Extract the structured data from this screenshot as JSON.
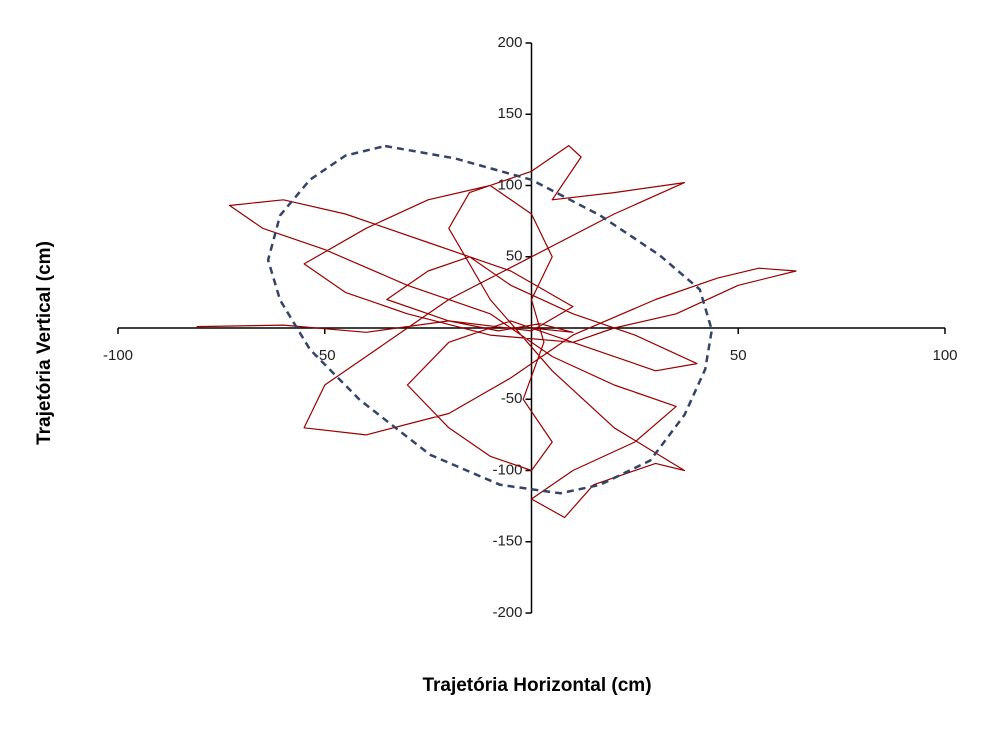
{
  "chart_data": {
    "type": "line",
    "x_label": "Trajetória Horizontal (cm)",
    "y_label": "Trajetória Vertical (cm)",
    "xlim": [
      -100,
      100
    ],
    "ylim": [
      -200,
      200
    ],
    "xticks": [
      -100,
      -50,
      50,
      100
    ],
    "yticks": [
      -200,
      -150,
      -100,
      -50,
      50,
      100,
      150,
      200
    ],
    "trajectory": {
      "color": "#990000",
      "x": [
        -81,
        -60,
        -40,
        -20,
        0,
        10,
        -5,
        -25,
        -45,
        -60,
        -73,
        -65,
        -50,
        -30,
        -10,
        5,
        20,
        35,
        25,
        10,
        0,
        8,
        15,
        30,
        37,
        20,
        5,
        -10,
        -20,
        -15,
        0,
        9,
        12,
        5,
        20,
        37,
        20,
        0,
        -20,
        -35,
        -50,
        -55,
        -40,
        -20,
        -5,
        10,
        30,
        45,
        55,
        64,
        50,
        35,
        20,
        10,
        -10,
        -30,
        -45,
        -55,
        -40,
        -25,
        -10,
        0,
        5,
        0,
        3,
        -2,
        5,
        0,
        -10,
        -20,
        -30,
        -20,
        -5,
        15,
        30,
        40,
        25,
        10,
        -5,
        -15,
        -25,
        -35,
        -20,
        -8,
        2,
        10,
        0
      ],
      "y": [
        1,
        2,
        -3,
        5,
        -2,
        15,
        40,
        60,
        80,
        90,
        86,
        70,
        55,
        30,
        10,
        -20,
        -40,
        -55,
        -80,
        -100,
        -120,
        -133,
        -110,
        -95,
        -100,
        -70,
        -30,
        20,
        70,
        95,
        110,
        128,
        120,
        90,
        95,
        102,
        80,
        50,
        20,
        -10,
        -40,
        -70,
        -75,
        -60,
        -35,
        -5,
        20,
        35,
        42,
        40,
        30,
        10,
        0,
        -10,
        -5,
        10,
        25,
        45,
        70,
        90,
        100,
        80,
        50,
        20,
        -10,
        -50,
        -80,
        -100,
        -90,
        -70,
        -40,
        -10,
        5,
        -15,
        -30,
        -25,
        -5,
        10,
        30,
        50,
        40,
        20,
        5,
        -2,
        3,
        -3,
        0
      ]
    },
    "ellipse": {
      "color": "#334466",
      "dashed": true,
      "x": [
        -35.4,
        -18.5,
        0,
        16.6,
        31,
        40.7,
        43.6,
        42,
        37,
        28.7,
        16.6,
        7,
        -7.6,
        -24.5,
        -41.5,
        -53.6,
        -60.8,
        -63.7,
        -60.8,
        -53.6,
        -45,
        -35.4
      ],
      "y": [
        127.7,
        119,
        104,
        79,
        51,
        27,
        -1.4,
        -29,
        -61,
        -93,
        -110,
        -116,
        -110,
        -89,
        -50.5,
        -15,
        19.6,
        47.7,
        79,
        104,
        121,
        127.7
      ]
    }
  }
}
